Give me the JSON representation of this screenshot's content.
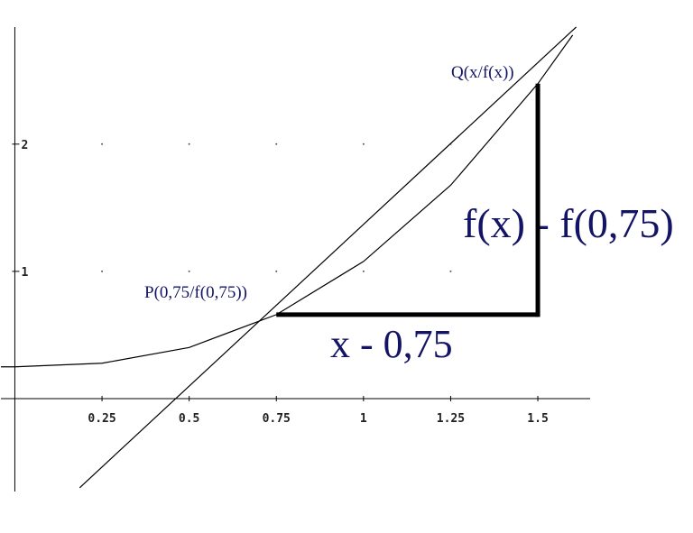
{
  "chart_data": {
    "type": "line",
    "series": [
      {
        "color": "#000000",
        "x": [
          -0.04,
          0,
          0.25,
          0.5,
          0.75,
          1,
          1.25,
          1.5,
          1.6
        ],
        "values": [
          0.25,
          0.25,
          0.278,
          0.402,
          0.66,
          1.078,
          1.677,
          2.475,
          2.857
        ]
      },
      {
        "color": "#000000",
        "x": [
          0.186,
          1.61
        ],
        "values": [
          -0.7,
          2.92
        ]
      }
    ],
    "points": [
      {
        "x": 0.75,
        "y": 0.66
      },
      {
        "x": 1.5,
        "y": 2.475
      }
    ],
    "annotations": [
      "P(0,75/f(0,75))",
      "Q(x/f(x))",
      "x - 0,75",
      "f(x) - f(0,75)"
    ],
    "annotation_color": "#141466",
    "xlim": [
      -0.04,
      1.65
    ],
    "ylim": [
      -0.73,
      2.92
    ],
    "xticks": [
      0.25,
      0.5,
      0.75,
      1,
      1.25,
      1.5
    ],
    "yticks": [
      1,
      2
    ],
    "grid": "dots"
  }
}
